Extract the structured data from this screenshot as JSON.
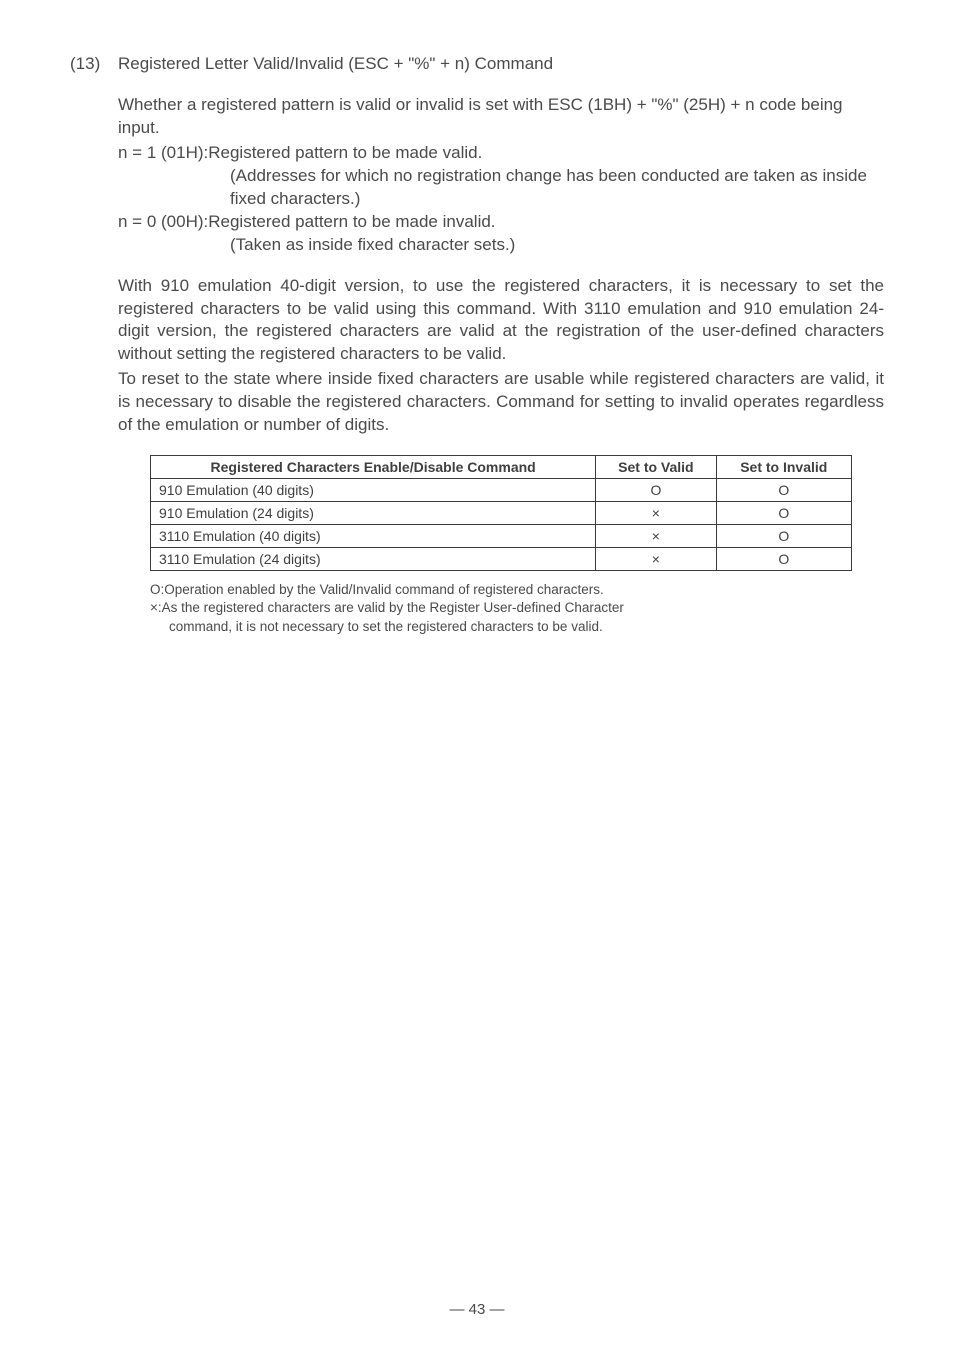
{
  "heading": {
    "number": "(13)",
    "title": "Registered Letter Valid/Invalid (ESC + \"%\" + n) Command"
  },
  "intro": {
    "p1": "Whether a registered pattern is valid or invalid is set with ESC (1BH) + \"%\" (25H) + n code being input.",
    "n1_label": "n = 1 (01H): ",
    "n1_text": "Registered pattern to be made valid.",
    "n1_sub1": "(Addresses for which no registration change has been conducted are taken as inside fixed characters.)",
    "n0_label": "n = 0 (00H): ",
    "n0_text": "Registered pattern to be made invalid.",
    "n0_sub1": "(Taken as inside fixed character sets.)"
  },
  "explain": {
    "p1": "With 910 emulation 40-digit version, to use the registered characters, it is necessary to set the registered characters to be valid using this command. With 3110 emulation and 910 emulation 24-digit version, the registered characters are valid at the registration of the user-defined characters without setting the registered characters to be valid.",
    "p2": "To reset to the state where inside fixed characters are usable while registered characters are valid, it is necessary to disable the registered characters. Command for setting to invalid operates regardless of the emulation or number of digits."
  },
  "table": {
    "headers": [
      "Registered Characters Enable/Disable Command",
      "Set to Valid",
      "Set to Invalid"
    ],
    "rows": [
      [
        "910 Emulation (40 digits)",
        "O",
        "O"
      ],
      [
        "910 Emulation (24 digits)",
        "×",
        "O"
      ],
      [
        "3110 Emulation (40 digits)",
        "×",
        "O"
      ],
      [
        "3110 Emulation (24 digits)",
        "×",
        "O"
      ]
    ]
  },
  "legend": {
    "o_key": "O: ",
    "o_text": "Operation enabled by the Valid/Invalid command of registered characters.",
    "x_key": "×: ",
    "x_text": "As the registered characters are valid by the Register User-defined Character",
    "x_text2": "command, it is not necessary to set the registered characters to be valid."
  },
  "pageNumber": "— 43 —"
}
